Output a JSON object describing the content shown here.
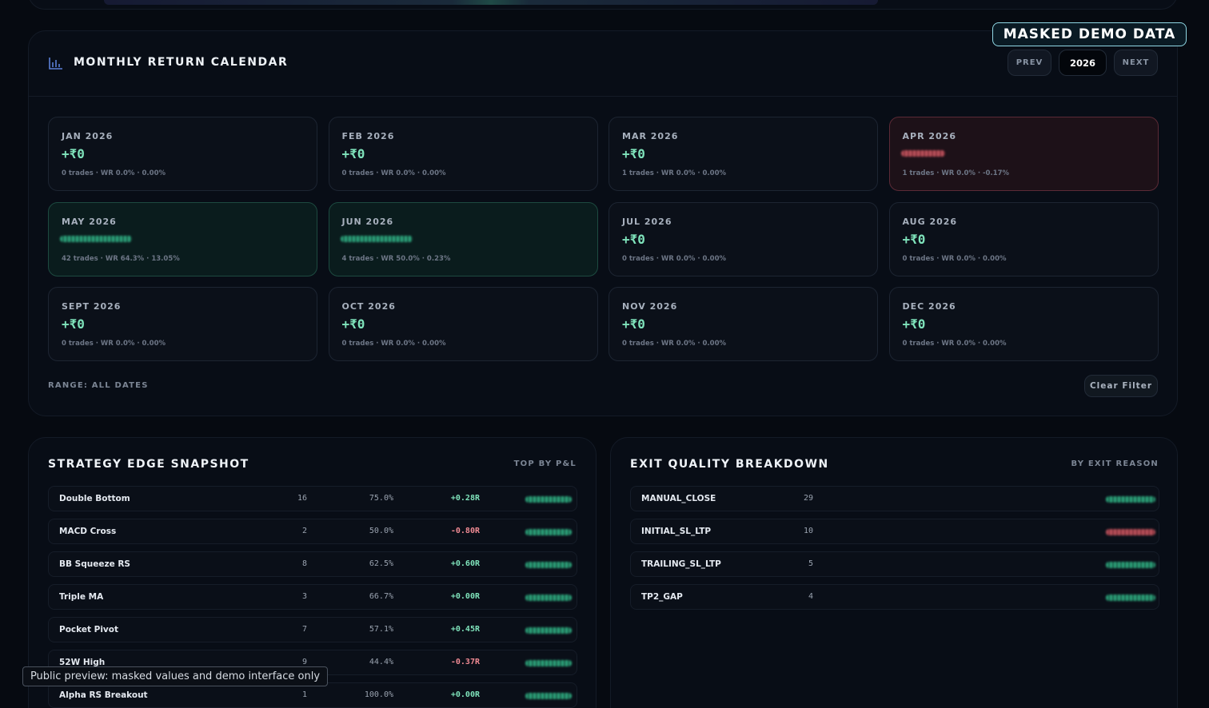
{
  "badge": "MASKED DEMO DATA",
  "calendar": {
    "title": "MONTHLY RETURN CALENDAR",
    "nav": [
      "PREV",
      "2026",
      "NEXT"
    ],
    "months": [
      {
        "label": "JAN 2026",
        "pnl": "+₹0",
        "stats": "0 trades · WR 0.0% · 0.00%",
        "tone": "neutral"
      },
      {
        "label": "FEB 2026",
        "pnl": "+₹0",
        "stats": "0 trades · WR 0.0% · 0.00%",
        "tone": "neutral"
      },
      {
        "label": "MAR 2026",
        "pnl": "+₹0",
        "stats": "1 trades · WR 0.0% · 0.00%",
        "tone": "neutral"
      },
      {
        "label": "APR 2026",
        "masked": true,
        "stats": "1 trades · WR 0.0% · -0.17%",
        "tone": "loss"
      },
      {
        "label": "MAY 2026",
        "masked": true,
        "stats": "42 trades · WR 64.3% · 13.05%",
        "tone": "gain"
      },
      {
        "label": "JUN 2026",
        "masked": true,
        "stats": "4 trades · WR 50.0% · 0.23%",
        "tone": "gain"
      },
      {
        "label": "JUL 2026",
        "pnl": "+₹0",
        "stats": "0 trades · WR 0.0% · 0.00%",
        "tone": "neutral"
      },
      {
        "label": "AUG 2026",
        "pnl": "+₹0",
        "stats": "0 trades · WR 0.0% · 0.00%",
        "tone": "neutral"
      },
      {
        "label": "SEPT 2026",
        "pnl": "+₹0",
        "stats": "0 trades · WR 0.0% · 0.00%",
        "tone": "neutral"
      },
      {
        "label": "OCT 2026",
        "pnl": "+₹0",
        "stats": "0 trades · WR 0.0% · 0.00%",
        "tone": "neutral"
      },
      {
        "label": "NOV 2026",
        "pnl": "+₹0",
        "stats": "0 trades · WR 0.0% · 0.00%",
        "tone": "neutral"
      },
      {
        "label": "DEC 2026",
        "pnl": "+₹0",
        "stats": "0 trades · WR 0.0% · 0.00%",
        "tone": "neutral"
      }
    ],
    "range": "RANGE: ALL DATES",
    "clear": "Clear Filter"
  },
  "strategy": {
    "title": "STRATEGY EDGE SNAPSHOT",
    "subtitle": "TOP BY P&L",
    "rows": [
      {
        "name": "Double Bottom",
        "trades": "16",
        "wr": "75.0%",
        "r": "+0.28R",
        "tone": "gain"
      },
      {
        "name": "MACD Cross",
        "trades": "2",
        "wr": "50.0%",
        "r": "-0.80R",
        "tone": "gain"
      },
      {
        "name": "BB Squeeze RS",
        "trades": "8",
        "wr": "62.5%",
        "r": "+0.60R",
        "tone": "gain"
      },
      {
        "name": "Triple MA",
        "trades": "3",
        "wr": "66.7%",
        "r": "+0.00R",
        "tone": "gain"
      },
      {
        "name": "Pocket Pivot",
        "trades": "7",
        "wr": "57.1%",
        "r": "+0.45R",
        "tone": "gain"
      },
      {
        "name": "52W High",
        "trades": "9",
        "wr": "44.4%",
        "r": "-0.37R",
        "tone": "gain"
      },
      {
        "name": "Alpha RS Breakout",
        "trades": "1",
        "wr": "100.0%",
        "r": "+0.00R",
        "tone": "gain"
      }
    ]
  },
  "exit": {
    "title": "EXIT QUALITY BREAKDOWN",
    "subtitle": "BY EXIT REASON",
    "rows": [
      {
        "name": "MANUAL_CLOSE",
        "trades": "29",
        "tone": "gain"
      },
      {
        "name": "INITIAL_SL_LTP",
        "trades": "10",
        "tone": "loss"
      },
      {
        "name": "TRAILING_SL_LTP",
        "trades": "5",
        "tone": "gain"
      },
      {
        "name": "TP2_GAP",
        "trades": "4",
        "tone": "gain"
      }
    ]
  },
  "footer_note": "Public preview: masked values and demo interface only"
}
